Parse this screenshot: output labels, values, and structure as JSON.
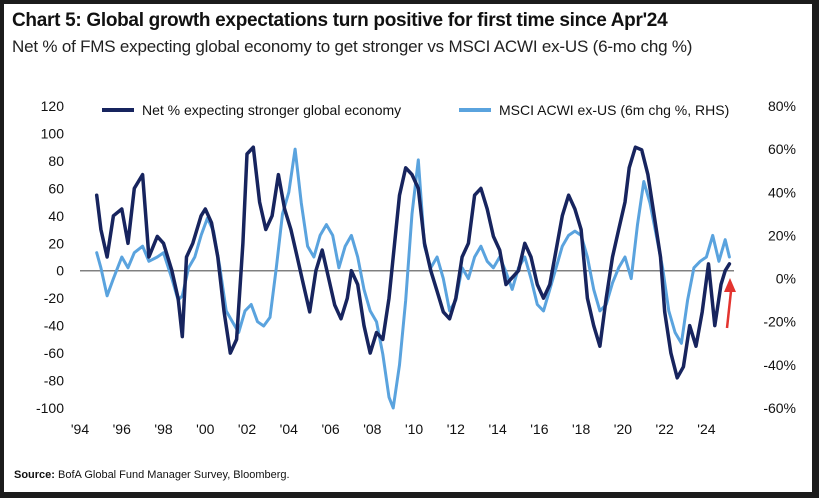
{
  "header": {
    "title": "Chart 5: Global growth expectations turn positive for first time since Apr'24",
    "subtitle": "Net % of FMS expecting global economy to get stronger vs MSCI ACWI ex-US (6-mo chg %)"
  },
  "footer": {
    "source_label": "Source:",
    "source_text": "BofA Global Fund Manager Survey, Bloomberg."
  },
  "colors": {
    "series_left": "#17245e",
    "series_right": "#5aa3de",
    "zero_line": "#808080",
    "arrow": "#e3342f"
  },
  "chart_data": {
    "type": "line",
    "grid": false,
    "legend_position": "top",
    "x_ticks": [
      "'94",
      "'96",
      "'98",
      "'00",
      "'02",
      "'04",
      "'06",
      "'08",
      "'10",
      "'12",
      "'14",
      "'16",
      "'18",
      "'20",
      "'22",
      "'24"
    ],
    "xlim": [
      1994,
      2025.8
    ],
    "y_left": {
      "ticks": [
        "120",
        "100",
        "80",
        "60",
        "40",
        "20",
        "0",
        "-20",
        "-40",
        "-60",
        "-80",
        "-100"
      ],
      "ylim": [
        -100,
        120
      ]
    },
    "y_right": {
      "ticks": [
        "80%",
        "60%",
        "40%",
        "20%",
        "0%",
        "-20%",
        "-40%",
        "-60%"
      ],
      "ylim": [
        -60,
        80
      ]
    },
    "series": [
      {
        "name": "Net % expecting stronger global economy",
        "axis": "left",
        "x": [
          1994.8,
          1995.0,
          1995.3,
          1995.6,
          1996.0,
          1996.3,
          1996.6,
          1997.0,
          1997.3,
          1997.7,
          1998.0,
          1998.4,
          1998.7,
          1998.9,
          1999.1,
          1999.4,
          1999.8,
          2000.0,
          2000.3,
          2000.6,
          2000.9,
          2001.2,
          2001.5,
          2001.8,
          2002.0,
          2002.3,
          2002.6,
          2002.9,
          2003.2,
          2003.5,
          2003.8,
          2004.1,
          2004.4,
          2004.7,
          2005.0,
          2005.3,
          2005.6,
          2005.9,
          2006.2,
          2006.5,
          2006.8,
          2007.0,
          2007.3,
          2007.6,
          2007.9,
          2008.2,
          2008.5,
          2008.8,
          2009.0,
          2009.3,
          2009.6,
          2009.9,
          2010.2,
          2010.5,
          2010.8,
          2011.1,
          2011.4,
          2011.7,
          2012.0,
          2012.3,
          2012.6,
          2012.9,
          2013.2,
          2013.5,
          2013.8,
          2014.1,
          2014.4,
          2014.7,
          2015.0,
          2015.3,
          2015.6,
          2015.9,
          2016.2,
          2016.5,
          2016.8,
          2017.1,
          2017.4,
          2017.7,
          2018.0,
          2018.3,
          2018.6,
          2018.9,
          2019.2,
          2019.5,
          2019.8,
          2020.1,
          2020.3,
          2020.6,
          2020.9,
          2021.2,
          2021.5,
          2021.8,
          2022.0,
          2022.3,
          2022.6,
          2022.9,
          2023.2,
          2023.5,
          2023.8,
          2024.1,
          2024.4,
          2024.7,
          2024.9,
          2025.1
        ],
        "values": [
          55,
          30,
          10,
          40,
          45,
          20,
          60,
          70,
          10,
          25,
          20,
          0,
          -20,
          -48,
          10,
          20,
          40,
          45,
          35,
          10,
          -30,
          -60,
          -50,
          20,
          85,
          90,
          50,
          30,
          40,
          70,
          45,
          30,
          10,
          -10,
          -30,
          0,
          15,
          -5,
          -25,
          -35,
          -20,
          0,
          -10,
          -40,
          -60,
          -45,
          -50,
          -20,
          10,
          55,
          75,
          70,
          60,
          20,
          0,
          -15,
          -30,
          -35,
          -20,
          10,
          20,
          55,
          60,
          45,
          25,
          15,
          -10,
          -5,
          0,
          20,
          10,
          -10,
          -20,
          -10,
          15,
          40,
          55,
          45,
          30,
          -20,
          -40,
          -55,
          -20,
          10,
          30,
          50,
          75,
          90,
          88,
          70,
          40,
          10,
          -30,
          -60,
          -78,
          -70,
          -40,
          -55,
          -30,
          5,
          -40,
          -10,
          0,
          5
        ]
      },
      {
        "name": "MSCI ACWI ex-US (6m chg %, RHS)",
        "axis": "right",
        "x": [
          1994.8,
          1995.0,
          1995.3,
          1995.6,
          1996.0,
          1996.3,
          1996.6,
          1997.0,
          1997.3,
          1997.7,
          1998.0,
          1998.4,
          1998.7,
          1998.9,
          1999.2,
          1999.5,
          1999.8,
          2000.1,
          2000.4,
          2000.7,
          2001.0,
          2001.3,
          2001.6,
          2001.9,
          2002.2,
          2002.5,
          2002.8,
          2003.1,
          2003.4,
          2003.7,
          2004.0,
          2004.3,
          2004.6,
          2004.9,
          2005.2,
          2005.5,
          2005.8,
          2006.1,
          2006.4,
          2006.7,
          2007.0,
          2007.3,
          2007.6,
          2007.9,
          2008.2,
          2008.5,
          2008.8,
          2009.0,
          2009.3,
          2009.6,
          2009.9,
          2010.2,
          2010.5,
          2010.8,
          2011.1,
          2011.4,
          2011.7,
          2012.0,
          2012.3,
          2012.6,
          2012.9,
          2013.2,
          2013.5,
          2013.8,
          2014.1,
          2014.4,
          2014.7,
          2015.0,
          2015.3,
          2015.6,
          2015.9,
          2016.2,
          2016.5,
          2016.8,
          2017.1,
          2017.4,
          2017.7,
          2018.0,
          2018.3,
          2018.6,
          2018.9,
          2019.2,
          2019.5,
          2019.8,
          2020.1,
          2020.4,
          2020.7,
          2021.0,
          2021.3,
          2021.6,
          2021.9,
          2022.2,
          2022.5,
          2022.8,
          2023.1,
          2023.4,
          2023.7,
          2024.0,
          2024.3,
          2024.6,
          2024.9,
          2025.1
        ],
        "values": [
          12,
          5,
          -8,
          0,
          10,
          5,
          12,
          15,
          8,
          10,
          12,
          0,
          -10,
          -8,
          5,
          10,
          20,
          28,
          22,
          5,
          -15,
          -20,
          -25,
          -15,
          -12,
          -20,
          -22,
          -18,
          5,
          30,
          40,
          60,
          35,
          15,
          10,
          20,
          25,
          20,
          5,
          15,
          20,
          10,
          -5,
          -15,
          -20,
          -35,
          -55,
          -60,
          -40,
          -10,
          30,
          55,
          15,
          5,
          10,
          0,
          -15,
          -10,
          5,
          0,
          10,
          15,
          8,
          5,
          10,
          3,
          -5,
          5,
          10,
          0,
          -12,
          -15,
          -5,
          5,
          15,
          20,
          22,
          20,
          10,
          -5,
          -15,
          -12,
          -2,
          5,
          10,
          0,
          25,
          45,
          35,
          20,
          5,
          -15,
          -25,
          -30,
          -10,
          5,
          8,
          10,
          20,
          8,
          18,
          10
        ]
      }
    ]
  }
}
